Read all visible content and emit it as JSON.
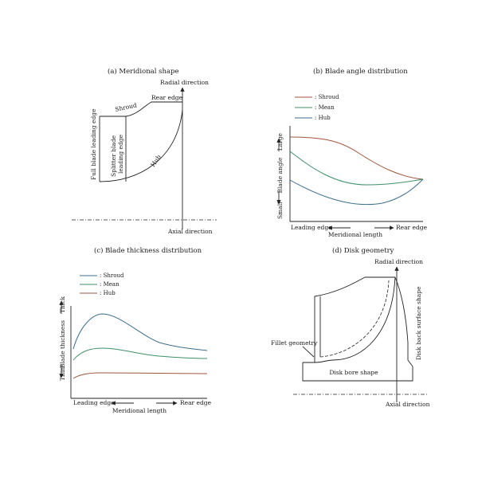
{
  "panel_a": {
    "title": "(a) Meridional shape",
    "radial_direction": "Radial direction",
    "axial_direction": "Axial direction",
    "rear_edge": "Rear edge",
    "shroud": "Shroud",
    "hub": "Hub",
    "full_blade_leading_edge": "Full blade leading edge",
    "splitter_line1": "Splitter blade",
    "splitter_line2": "leading edge"
  },
  "panel_b": {
    "title": "(b) Blade angle distribution",
    "legend": [
      ": Shroud",
      ": Mean",
      ": Hub"
    ],
    "y_large": "Large",
    "y_label": "Blade angle",
    "y_small": "Small",
    "x_leading": "Leading edge",
    "x_rear": "Rear edge",
    "x_label": "Meridional length"
  },
  "panel_c": {
    "title": "(c) Blade thickness distribution",
    "legend": [
      ": Shroud",
      ": Mean",
      ": Hub"
    ],
    "y_thick": "Thick",
    "y_label": "Blade thickness",
    "y_thin": "Thin",
    "x_leading": "Leading edge",
    "x_rear": "Rear edge",
    "x_label": "Meridional length"
  },
  "panel_d": {
    "title": "(d) Disk geometry",
    "radial_direction": "Radial direction",
    "axial_direction": "Axial direction",
    "fillet": "Fillet geometry",
    "disk_back": "Disk back surface shape",
    "disk_bore": "Disk bore shape"
  },
  "colors": {
    "shroud": "#a0563c",
    "mean": "#3f8f6a",
    "hub": "#3c6e8c",
    "ink": "#222222"
  }
}
